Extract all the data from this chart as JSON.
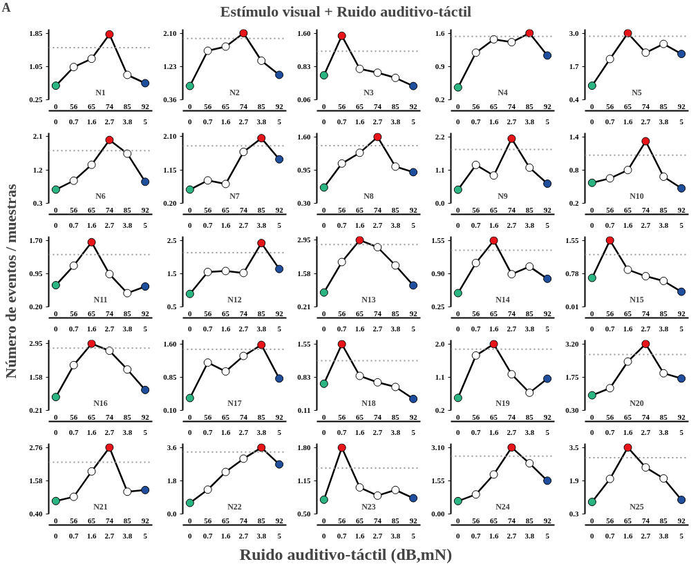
{
  "chart_data": [
    {
      "type": "other",
      "title": "Estímulo visual + Ruido auditivo-táctil",
      "ylabel": "Número de eventos / muestras",
      "xlabel": "Ruido auditivo-táctil (dB,mN)",
      "annotations": [
        "A"
      ]
    },
    {
      "type": "line",
      "annotations": [
        "N1",
        "0",
        "56",
        "65",
        "74",
        "85",
        "92"
      ],
      "categories": [
        "0",
        "0.7",
        "1.6",
        "2.7",
        "3.8",
        "5"
      ],
      "marker": "circle",
      "line_style": "solid",
      "color": "#000000",
      "values": [
        0.59,
        1.04,
        1.24,
        1.83,
        0.85,
        0.65
      ],
      "colors": [
        "#2bb583",
        "#ffffff",
        "#ffffff",
        "#e8141a",
        "#ffffff",
        "#1f4e9c"
      ],
      "ylim": [
        0.25,
        1.95
      ],
      "yticks": [
        {
          "value": 0.25,
          "label": "0.25"
        },
        {
          "value": 1.05,
          "label": "1.05"
        },
        {
          "value": 1.85,
          "label": "1.85"
        }
      ],
      "ref_lines": [
        {
          "axis": "y",
          "value": 1.51,
          "color": "#999999",
          "line_style": "dotted"
        }
      ]
    },
    {
      "type": "line",
      "annotations": [
        "N2",
        "0",
        "56",
        "65",
        "74",
        "85",
        "92"
      ],
      "categories": [
        "0",
        "0.7",
        "1.6",
        "2.7",
        "3.8",
        "5"
      ],
      "marker": "circle",
      "line_style": "solid",
      "color": "#000000",
      "values": [
        0.72,
        1.64,
        1.75,
        2.1,
        1.38,
        1.01
      ],
      "colors": [
        "#2bb583",
        "#ffffff",
        "#ffffff",
        "#e8141a",
        "#ffffff",
        "#1f4e9c"
      ],
      "ylim": [
        0.36,
        2.2
      ],
      "yticks": [
        {
          "value": 0.36,
          "label": "0.36"
        },
        {
          "value": 1.23,
          "label": "1.23"
        },
        {
          "value": 2.1,
          "label": "2.10"
        }
      ],
      "ref_lines": [
        {
          "axis": "y",
          "value": 1.96,
          "color": "#999999",
          "line_style": "dotted"
        }
      ]
    },
    {
      "type": "line",
      "annotations": [
        "N3",
        "0",
        "56",
        "65",
        "74",
        "85",
        "92"
      ],
      "categories": [
        "0",
        "0.7",
        "1.6",
        "2.7",
        "3.8",
        "5"
      ],
      "marker": "circle",
      "line_style": "solid",
      "color": "#000000",
      "values": [
        0.63,
        1.55,
        0.78,
        0.69,
        0.57,
        0.38
      ],
      "colors": [
        "#2bb583",
        "#e8141a",
        "#ffffff",
        "#ffffff",
        "#ffffff",
        "#1f4e9c"
      ],
      "ylim": [
        0.06,
        1.7
      ],
      "yticks": [
        {
          "value": 0.06,
          "label": "0.06"
        },
        {
          "value": 0.83,
          "label": "0.83"
        },
        {
          "value": 1.6,
          "label": "1.60"
        }
      ],
      "ref_lines": [
        {
          "axis": "y",
          "value": 1.19,
          "color": "#999999",
          "line_style": "dotted"
        }
      ]
    },
    {
      "type": "line",
      "annotations": [
        "N4",
        "0",
        "56",
        "65",
        "74",
        "85",
        "92"
      ],
      "categories": [
        "0",
        "0.7",
        "1.6",
        "2.7",
        "3.8",
        "5"
      ],
      "marker": "circle",
      "line_style": "solid",
      "color": "#000000",
      "values": [
        0.46,
        1.19,
        1.47,
        1.41,
        1.6,
        1.13
      ],
      "colors": [
        "#2bb583",
        "#ffffff",
        "#ffffff",
        "#ffffff",
        "#e8141a",
        "#1f4e9c"
      ],
      "ylim": [
        0.2,
        1.68
      ],
      "yticks": [
        {
          "value": 0.2,
          "label": "0.2"
        },
        {
          "value": 0.9,
          "label": "0.9"
        },
        {
          "value": 1.6,
          "label": "1.6"
        }
      ],
      "ref_lines": [
        {
          "axis": "y",
          "value": 1.53,
          "color": "#999999",
          "line_style": "dotted"
        }
      ]
    },
    {
      "type": "line",
      "annotations": [
        "N5",
        "0",
        "56",
        "65",
        "74",
        "85",
        "92"
      ],
      "categories": [
        "0",
        "0.7",
        "1.6",
        "2.7",
        "3.8",
        "5"
      ],
      "marker": "circle",
      "line_style": "solid",
      "color": "#000000",
      "values": [
        0.95,
        1.99,
        3.0,
        2.24,
        2.58,
        2.19
      ],
      "colors": [
        "#2bb583",
        "#ffffff",
        "#e8141a",
        "#ffffff",
        "#ffffff",
        "#1f4e9c"
      ],
      "ylim": [
        0.4,
        3.15
      ],
      "yticks": [
        {
          "value": 0.4,
          "label": "0.4"
        },
        {
          "value": 1.7,
          "label": "1.7"
        },
        {
          "value": 3.0,
          "label": "3.0"
        }
      ],
      "ref_lines": [
        {
          "axis": "y",
          "value": 2.88,
          "color": "#999999",
          "line_style": "dotted"
        }
      ]
    },
    {
      "type": "line",
      "annotations": [
        "N6",
        "0",
        "56",
        "65",
        "74",
        "85",
        "92"
      ],
      "categories": [
        "0",
        "0.7",
        "1.6",
        "2.7",
        "3.8",
        "5"
      ],
      "marker": "circle",
      "line_style": "solid",
      "color": "#000000",
      "values": [
        0.67,
        0.91,
        1.34,
        2.01,
        1.64,
        0.88
      ],
      "colors": [
        "#2bb583",
        "#ffffff",
        "#ffffff",
        "#e8141a",
        "#ffffff",
        "#1f4e9c"
      ],
      "ylim": [
        0.3,
        2.2
      ],
      "yticks": [
        {
          "value": 0.3,
          "label": "0.3"
        },
        {
          "value": 1.2,
          "label": "1.2"
        },
        {
          "value": 2.1,
          "label": "2.1"
        }
      ],
      "ref_lines": [
        {
          "axis": "y",
          "value": 1.72,
          "color": "#999999",
          "line_style": "dotted"
        }
      ]
    },
    {
      "type": "line",
      "annotations": [
        "N7",
        "0",
        "56",
        "65",
        "74",
        "85",
        "92"
      ],
      "categories": [
        "0",
        "0.7",
        "1.6",
        "2.7",
        "3.8",
        "5"
      ],
      "marker": "circle",
      "line_style": "solid",
      "color": "#000000",
      "values": [
        0.59,
        0.85,
        0.75,
        1.66,
        2.05,
        1.45
      ],
      "colors": [
        "#2bb583",
        "#ffffff",
        "#ffffff",
        "#ffffff",
        "#e8141a",
        "#1f4e9c"
      ],
      "ylim": [
        0.2,
        2.2
      ],
      "yticks": [
        {
          "value": 0.2,
          "label": "0.20"
        },
        {
          "value": 1.15,
          "label": "1.15"
        },
        {
          "value": 2.1,
          "label": "2.10"
        }
      ],
      "ref_lines": [
        {
          "axis": "y",
          "value": 1.83,
          "color": "#999999",
          "line_style": "dotted"
        }
      ]
    },
    {
      "type": "line",
      "annotations": [
        "N8",
        "0",
        "56",
        "65",
        "74",
        "85",
        "92"
      ],
      "categories": [
        "0",
        "0.7",
        "1.6",
        "2.7",
        "3.8",
        "5"
      ],
      "marker": "circle",
      "line_style": "solid",
      "color": "#000000",
      "values": [
        0.61,
        1.08,
        1.29,
        1.6,
        1.02,
        0.91
      ],
      "colors": [
        "#2bb583",
        "#ffffff",
        "#ffffff",
        "#e8141a",
        "#ffffff",
        "#1f4e9c"
      ],
      "ylim": [
        0.3,
        1.68
      ],
      "yticks": [
        {
          "value": 0.3,
          "label": "0.30"
        },
        {
          "value": 0.95,
          "label": "0.95"
        },
        {
          "value": 1.6,
          "label": "1.60"
        }
      ],
      "ref_lines": [
        {
          "axis": "y",
          "value": 1.43,
          "color": "#999999",
          "line_style": "dotted"
        }
      ]
    },
    {
      "type": "line",
      "annotations": [
        "N9",
        "0",
        "56",
        "65",
        "74",
        "85",
        "92"
      ],
      "categories": [
        "0",
        "0.7",
        "1.6",
        "2.7",
        "3.8",
        "5"
      ],
      "marker": "circle",
      "line_style": "solid",
      "color": "#000000",
      "values": [
        0.45,
        1.27,
        0.92,
        2.14,
        1.18,
        0.65
      ],
      "colors": [
        "#2bb583",
        "#ffffff",
        "#ffffff",
        "#e8141a",
        "#ffffff",
        "#1f4e9c"
      ],
      "ylim": [
        0.0,
        2.33
      ],
      "yticks": [
        {
          "value": 0.0,
          "label": "0.0"
        },
        {
          "value": 1.1,
          "label": "1.1"
        },
        {
          "value": 2.2,
          "label": "2.2"
        }
      ],
      "ref_lines": [
        {
          "axis": "y",
          "value": 1.78,
          "color": "#999999",
          "line_style": "dotted"
        }
      ]
    },
    {
      "type": "line",
      "annotations": [
        "N10",
        "0",
        "56",
        "65",
        "74",
        "85",
        "92"
      ],
      "categories": [
        "0",
        "0.7",
        "1.6",
        "2.7",
        "3.8",
        "5"
      ],
      "marker": "circle",
      "line_style": "solid",
      "color": "#000000",
      "values": [
        0.57,
        0.65,
        0.8,
        1.32,
        0.68,
        0.47
      ],
      "colors": [
        "#2bb583",
        "#ffffff",
        "#ffffff",
        "#e8141a",
        "#ffffff",
        "#1f4e9c"
      ],
      "ylim": [
        0.2,
        1.47
      ],
      "yticks": [
        {
          "value": 0.2,
          "label": "0.2"
        },
        {
          "value": 0.8,
          "label": "0.8"
        },
        {
          "value": 1.4,
          "label": "1.4"
        }
      ],
      "ref_lines": [
        {
          "axis": "y",
          "value": 1.07,
          "color": "#999999",
          "line_style": "dotted"
        }
      ]
    },
    {
      "type": "line",
      "annotations": [
        "N11",
        "0",
        "56",
        "65",
        "74",
        "85",
        "92"
      ],
      "categories": [
        "0",
        "0.7",
        "1.6",
        "2.7",
        "3.8",
        "5"
      ],
      "marker": "circle",
      "line_style": "solid",
      "color": "#000000",
      "values": [
        0.69,
        1.13,
        1.66,
        0.94,
        0.51,
        0.66
      ],
      "colors": [
        "#2bb583",
        "#ffffff",
        "#e8141a",
        "#ffffff",
        "#ffffff",
        "#1f4e9c"
      ],
      "ylim": [
        0.2,
        1.79
      ],
      "yticks": [
        {
          "value": 0.2,
          "label": "0.20"
        },
        {
          "value": 0.95,
          "label": "0.95"
        },
        {
          "value": 1.7,
          "label": "1.70"
        }
      ],
      "ref_lines": [
        {
          "axis": "y",
          "value": 1.38,
          "color": "#999999",
          "line_style": "dotted"
        }
      ]
    },
    {
      "type": "line",
      "annotations": [
        "N12",
        "0",
        "56",
        "65",
        "74",
        "85",
        "92"
      ],
      "categories": [
        "0",
        "0.7",
        "1.6",
        "2.7",
        "3.8",
        "5"
      ],
      "marker": "circle",
      "line_style": "solid",
      "color": "#000000",
      "values": [
        0.89,
        1.55,
        1.58,
        1.52,
        2.42,
        1.64
      ],
      "colors": [
        "#2bb583",
        "#ffffff",
        "#ffffff",
        "#ffffff",
        "#e8141a",
        "#1f4e9c"
      ],
      "ylim": [
        0.5,
        2.62
      ],
      "yticks": [
        {
          "value": 0.5,
          "label": "0.5"
        },
        {
          "value": 1.5,
          "label": "1.5"
        },
        {
          "value": 2.5,
          "label": "2.5"
        }
      ],
      "ref_lines": [
        {
          "axis": "y",
          "value": 2.13,
          "color": "#999999",
          "line_style": "dotted"
        }
      ]
    },
    {
      "type": "line",
      "annotations": [
        "N13",
        "0",
        "56",
        "65",
        "74",
        "85",
        "92"
      ],
      "categories": [
        "0",
        "0.7",
        "1.6",
        "2.7",
        "3.8",
        "5"
      ],
      "marker": "circle",
      "line_style": "solid",
      "color": "#000000",
      "values": [
        0.8,
        2.05,
        2.95,
        2.66,
        1.91,
        1.09
      ],
      "colors": [
        "#2bb583",
        "#ffffff",
        "#e8141a",
        "#ffffff",
        "#ffffff",
        "#1f4e9c"
      ],
      "ylim": [
        0.21,
        3.1
      ],
      "yticks": [
        {
          "value": 0.21,
          "label": "0.21"
        },
        {
          "value": 1.58,
          "label": "1.58"
        },
        {
          "value": 2.95,
          "label": "2.95"
        }
      ],
      "ref_lines": [
        {
          "axis": "y",
          "value": 2.77,
          "color": "#999999",
          "line_style": "dotted"
        }
      ]
    },
    {
      "type": "line",
      "annotations": [
        "N14",
        "0",
        "56",
        "65",
        "74",
        "85",
        "92"
      ],
      "categories": [
        "0",
        "0.7",
        "1.6",
        "2.7",
        "3.8",
        "5"
      ],
      "marker": "circle",
      "line_style": "solid",
      "color": "#000000",
      "values": [
        0.52,
        1.11,
        1.55,
        0.89,
        1.04,
        0.8
      ],
      "colors": [
        "#2bb583",
        "#ffffff",
        "#e8141a",
        "#ffffff",
        "#ffffff",
        "#1f4e9c"
      ],
      "ylim": [
        0.25,
        1.63
      ],
      "yticks": [
        {
          "value": 0.25,
          "label": "0.25"
        },
        {
          "value": 0.9,
          "label": "0.90"
        },
        {
          "value": 1.55,
          "label": "1.55"
        }
      ],
      "ref_lines": [
        {
          "axis": "y",
          "value": 1.36,
          "color": "#999999",
          "line_style": "dotted"
        }
      ]
    },
    {
      "type": "line",
      "annotations": [
        "N15",
        "0",
        "56",
        "65",
        "74",
        "85",
        "92"
      ],
      "categories": [
        "0",
        "0.7",
        "1.6",
        "2.7",
        "3.8",
        "5"
      ],
      "marker": "circle",
      "line_style": "solid",
      "color": "#000000",
      "values": [
        0.68,
        1.55,
        0.87,
        0.72,
        0.61,
        0.36
      ],
      "colors": [
        "#2bb583",
        "#e8141a",
        "#ffffff",
        "#ffffff",
        "#ffffff",
        "#1f4e9c"
      ],
      "ylim": [
        0.01,
        1.64
      ],
      "yticks": [
        {
          "value": 0.01,
          "label": "0.01"
        },
        {
          "value": 0.78,
          "label": "0.78"
        },
        {
          "value": 1.55,
          "label": "1.55"
        }
      ],
      "ref_lines": [
        {
          "axis": "y",
          "value": 1.22,
          "color": "#999999",
          "line_style": "dotted"
        }
      ]
    },
    {
      "type": "line",
      "annotations": [
        "N16",
        "0",
        "56",
        "65",
        "74",
        "85",
        "92"
      ],
      "categories": [
        "0",
        "0.7",
        "1.6",
        "2.7",
        "3.8",
        "5"
      ],
      "marker": "circle",
      "line_style": "solid",
      "color": "#000000",
      "values": [
        0.76,
        2.07,
        2.95,
        2.66,
        1.89,
        1.05
      ],
      "colors": [
        "#2bb583",
        "#ffffff",
        "#e8141a",
        "#ffffff",
        "#ffffff",
        "#1f4e9c"
      ],
      "ylim": [
        0.21,
        3.1
      ],
      "yticks": [
        {
          "value": 0.21,
          "label": "0.21"
        },
        {
          "value": 1.58,
          "label": "1.58"
        },
        {
          "value": 2.95,
          "label": "2.95"
        }
      ],
      "ref_lines": [
        {
          "axis": "y",
          "value": 2.77,
          "color": "#999999",
          "line_style": "dotted"
        }
      ]
    },
    {
      "type": "line",
      "annotations": [
        "N17",
        "0",
        "56",
        "65",
        "74",
        "85",
        "92"
      ],
      "categories": [
        "0",
        "0.7",
        "1.6",
        "2.7",
        "3.8",
        "5"
      ],
      "marker": "circle",
      "line_style": "solid",
      "color": "#000000",
      "values": [
        0.38,
        1.18,
        0.98,
        1.33,
        1.58,
        0.82
      ],
      "colors": [
        "#2bb583",
        "#ffffff",
        "#ffffff",
        "#ffffff",
        "#e8141a",
        "#1f4e9c"
      ],
      "ylim": [
        0.1,
        1.69
      ],
      "yticks": [
        {
          "value": 0.1,
          "label": "0.10"
        },
        {
          "value": 0.85,
          "label": "0.85"
        },
        {
          "value": 1.6,
          "label": "1.60"
        }
      ],
      "ref_lines": [
        {
          "axis": "y",
          "value": 1.48,
          "color": "#999999",
          "line_style": "dotted"
        }
      ]
    },
    {
      "type": "line",
      "annotations": [
        "N18",
        "0",
        "56",
        "65",
        "74",
        "85",
        "92"
      ],
      "categories": [
        "0",
        "0.7",
        "1.6",
        "2.7",
        "3.8",
        "5"
      ],
      "marker": "circle",
      "line_style": "solid",
      "color": "#000000",
      "values": [
        0.69,
        1.55,
        0.86,
        0.72,
        0.62,
        0.36
      ],
      "colors": [
        "#2bb583",
        "#e8141a",
        "#ffffff",
        "#ffffff",
        "#ffffff",
        "#1f4e9c"
      ],
      "ylim": [
        0.11,
        1.64
      ],
      "yticks": [
        {
          "value": 0.11,
          "label": "0.11"
        },
        {
          "value": 0.83,
          "label": "0.83"
        },
        {
          "value": 1.55,
          "label": "1.55"
        }
      ],
      "ref_lines": [
        {
          "axis": "y",
          "value": 1.19,
          "color": "#999999",
          "line_style": "dotted"
        }
      ]
    },
    {
      "type": "line",
      "annotations": [
        "N19",
        "0",
        "56",
        "65",
        "74",
        "85",
        "92"
      ],
      "categories": [
        "0",
        "0.7",
        "1.6",
        "2.7",
        "3.8",
        "5"
      ],
      "marker": "circle",
      "line_style": "solid",
      "color": "#000000",
      "values": [
        0.54,
        1.69,
        2.0,
        1.18,
        0.68,
        1.06
      ],
      "colors": [
        "#2bb583",
        "#ffffff",
        "#e8141a",
        "#ffffff",
        "#ffffff",
        "#1f4e9c"
      ],
      "ylim": [
        0.2,
        2.11
      ],
      "yticks": [
        {
          "value": 0.2,
          "label": "0.2"
        },
        {
          "value": 1.1,
          "label": "1.1"
        },
        {
          "value": 2.0,
          "label": "2.0"
        }
      ],
      "ref_lines": [
        {
          "axis": "y",
          "value": 1.86,
          "color": "#999999",
          "line_style": "dotted"
        }
      ]
    },
    {
      "type": "line",
      "annotations": [
        "N20",
        "0",
        "56",
        "65",
        "74",
        "85",
        "92"
      ],
      "categories": [
        "0",
        "0.7",
        "1.6",
        "2.7",
        "3.8",
        "5"
      ],
      "marker": "circle",
      "line_style": "solid",
      "color": "#000000",
      "values": [
        0.96,
        1.27,
        2.43,
        3.2,
        1.92,
        1.69
      ],
      "colors": [
        "#2bb583",
        "#ffffff",
        "#ffffff",
        "#e8141a",
        "#ffffff",
        "#1f4e9c"
      ],
      "ylim": [
        0.3,
        3.37
      ],
      "yticks": [
        {
          "value": 0.3,
          "label": "0.30"
        },
        {
          "value": 1.75,
          "label": "1.75"
        },
        {
          "value": 3.2,
          "label": "3.20"
        }
      ],
      "ref_lines": [
        {
          "axis": "y",
          "value": 2.74,
          "color": "#999999",
          "line_style": "dotted"
        }
      ]
    },
    {
      "type": "line",
      "annotations": [
        "N21",
        "0",
        "56",
        "65",
        "74",
        "85",
        "92"
      ],
      "categories": [
        "0",
        "0.7",
        "1.6",
        "2.7",
        "3.8",
        "5"
      ],
      "marker": "circle",
      "line_style": "solid",
      "color": "#000000",
      "values": [
        0.86,
        1.01,
        1.91,
        2.76,
        1.19,
        1.25
      ],
      "colors": [
        "#2bb583",
        "#ffffff",
        "#ffffff",
        "#e8141a",
        "#ffffff",
        "#1f4e9c"
      ],
      "ylim": [
        0.4,
        2.9
      ],
      "yticks": [
        {
          "value": 0.4,
          "label": "0.40"
        },
        {
          "value": 1.58,
          "label": "1.58"
        },
        {
          "value": 2.76,
          "label": "2.76"
        }
      ],
      "ref_lines": [
        {
          "axis": "y",
          "value": 2.24,
          "color": "#999999",
          "line_style": "dotted"
        }
      ]
    },
    {
      "type": "line",
      "annotations": [
        "N22",
        "0",
        "56",
        "65",
        "74",
        "85",
        "92"
      ],
      "categories": [
        "0",
        "0.7",
        "1.6",
        "2.7",
        "3.8",
        "5"
      ],
      "marker": "circle",
      "line_style": "solid",
      "color": "#000000",
      "values": [
        0.6,
        1.32,
        2.28,
        3.0,
        3.6,
        2.69
      ],
      "colors": [
        "#2bb583",
        "#ffffff",
        "#ffffff",
        "#ffffff",
        "#e8141a",
        "#1f4e9c"
      ],
      "ylim": [
        0.0,
        3.82
      ],
      "yticks": [
        {
          "value": 0.0,
          "label": "0.0"
        },
        {
          "value": 1.8,
          "label": "1.8"
        },
        {
          "value": 3.6,
          "label": "3.6"
        }
      ],
      "ref_lines": [
        {
          "axis": "y",
          "value": 3.36,
          "color": "#999999",
          "line_style": "dotted"
        }
      ]
    },
    {
      "type": "line",
      "annotations": [
        "N23",
        "0",
        "56",
        "65",
        "74",
        "85",
        "92"
      ],
      "categories": [
        "0",
        "0.7",
        "1.6",
        "2.7",
        "3.8",
        "5"
      ],
      "marker": "circle",
      "line_style": "solid",
      "color": "#000000",
      "values": [
        0.78,
        1.8,
        1.02,
        0.86,
        0.97,
        0.81
      ],
      "colors": [
        "#2bb583",
        "#e8141a",
        "#ffffff",
        "#ffffff",
        "#ffffff",
        "#1f4e9c"
      ],
      "ylim": [
        0.5,
        1.88
      ],
      "yticks": [
        {
          "value": 0.5,
          "label": "0.50"
        },
        {
          "value": 1.15,
          "label": "1.15"
        },
        {
          "value": 1.8,
          "label": "1.80"
        }
      ],
      "ref_lines": [
        {
          "axis": "y",
          "value": 1.4,
          "color": "#999999",
          "line_style": "dotted"
        }
      ]
    },
    {
      "type": "line",
      "annotations": [
        "N24",
        "0",
        "56",
        "65",
        "74",
        "85",
        "92"
      ],
      "categories": [
        "0",
        "0.7",
        "1.6",
        "2.7",
        "3.8",
        "5"
      ],
      "marker": "circle",
      "line_style": "solid",
      "color": "#000000",
      "values": [
        0.6,
        0.91,
        1.84,
        3.1,
        2.36,
        1.55
      ],
      "colors": [
        "#2bb583",
        "#ffffff",
        "#ffffff",
        "#e8141a",
        "#ffffff",
        "#1f4e9c"
      ],
      "ylim": [
        0.0,
        3.28
      ],
      "yticks": [
        {
          "value": 0.0,
          "label": "0.00"
        },
        {
          "value": 1.55,
          "label": "1.55"
        },
        {
          "value": 3.1,
          "label": "3.10"
        }
      ],
      "ref_lines": [
        {
          "axis": "y",
          "value": 2.69,
          "color": "#999999",
          "line_style": "dotted"
        }
      ]
    },
    {
      "type": "line",
      "annotations": [
        "N25",
        "0",
        "56",
        "65",
        "74",
        "85",
        "92"
      ],
      "categories": [
        "0",
        "0.7",
        "1.6",
        "2.7",
        "3.8",
        "5"
      ],
      "marker": "circle",
      "line_style": "solid",
      "color": "#000000",
      "values": [
        0.88,
        1.99,
        3.5,
        2.54,
        2.01,
        0.98
      ],
      "colors": [
        "#2bb583",
        "#ffffff",
        "#e8141a",
        "#ffffff",
        "#ffffff",
        "#1f4e9c"
      ],
      "ylim": [
        0.3,
        3.69
      ],
      "yticks": [
        {
          "value": 0.3,
          "label": "0.3"
        },
        {
          "value": 1.9,
          "label": "1.9"
        },
        {
          "value": 3.5,
          "label": "3.5"
        }
      ],
      "ref_lines": [
        {
          "axis": "y",
          "value": 3.01,
          "color": "#999999",
          "line_style": "dotted"
        }
      ]
    }
  ]
}
